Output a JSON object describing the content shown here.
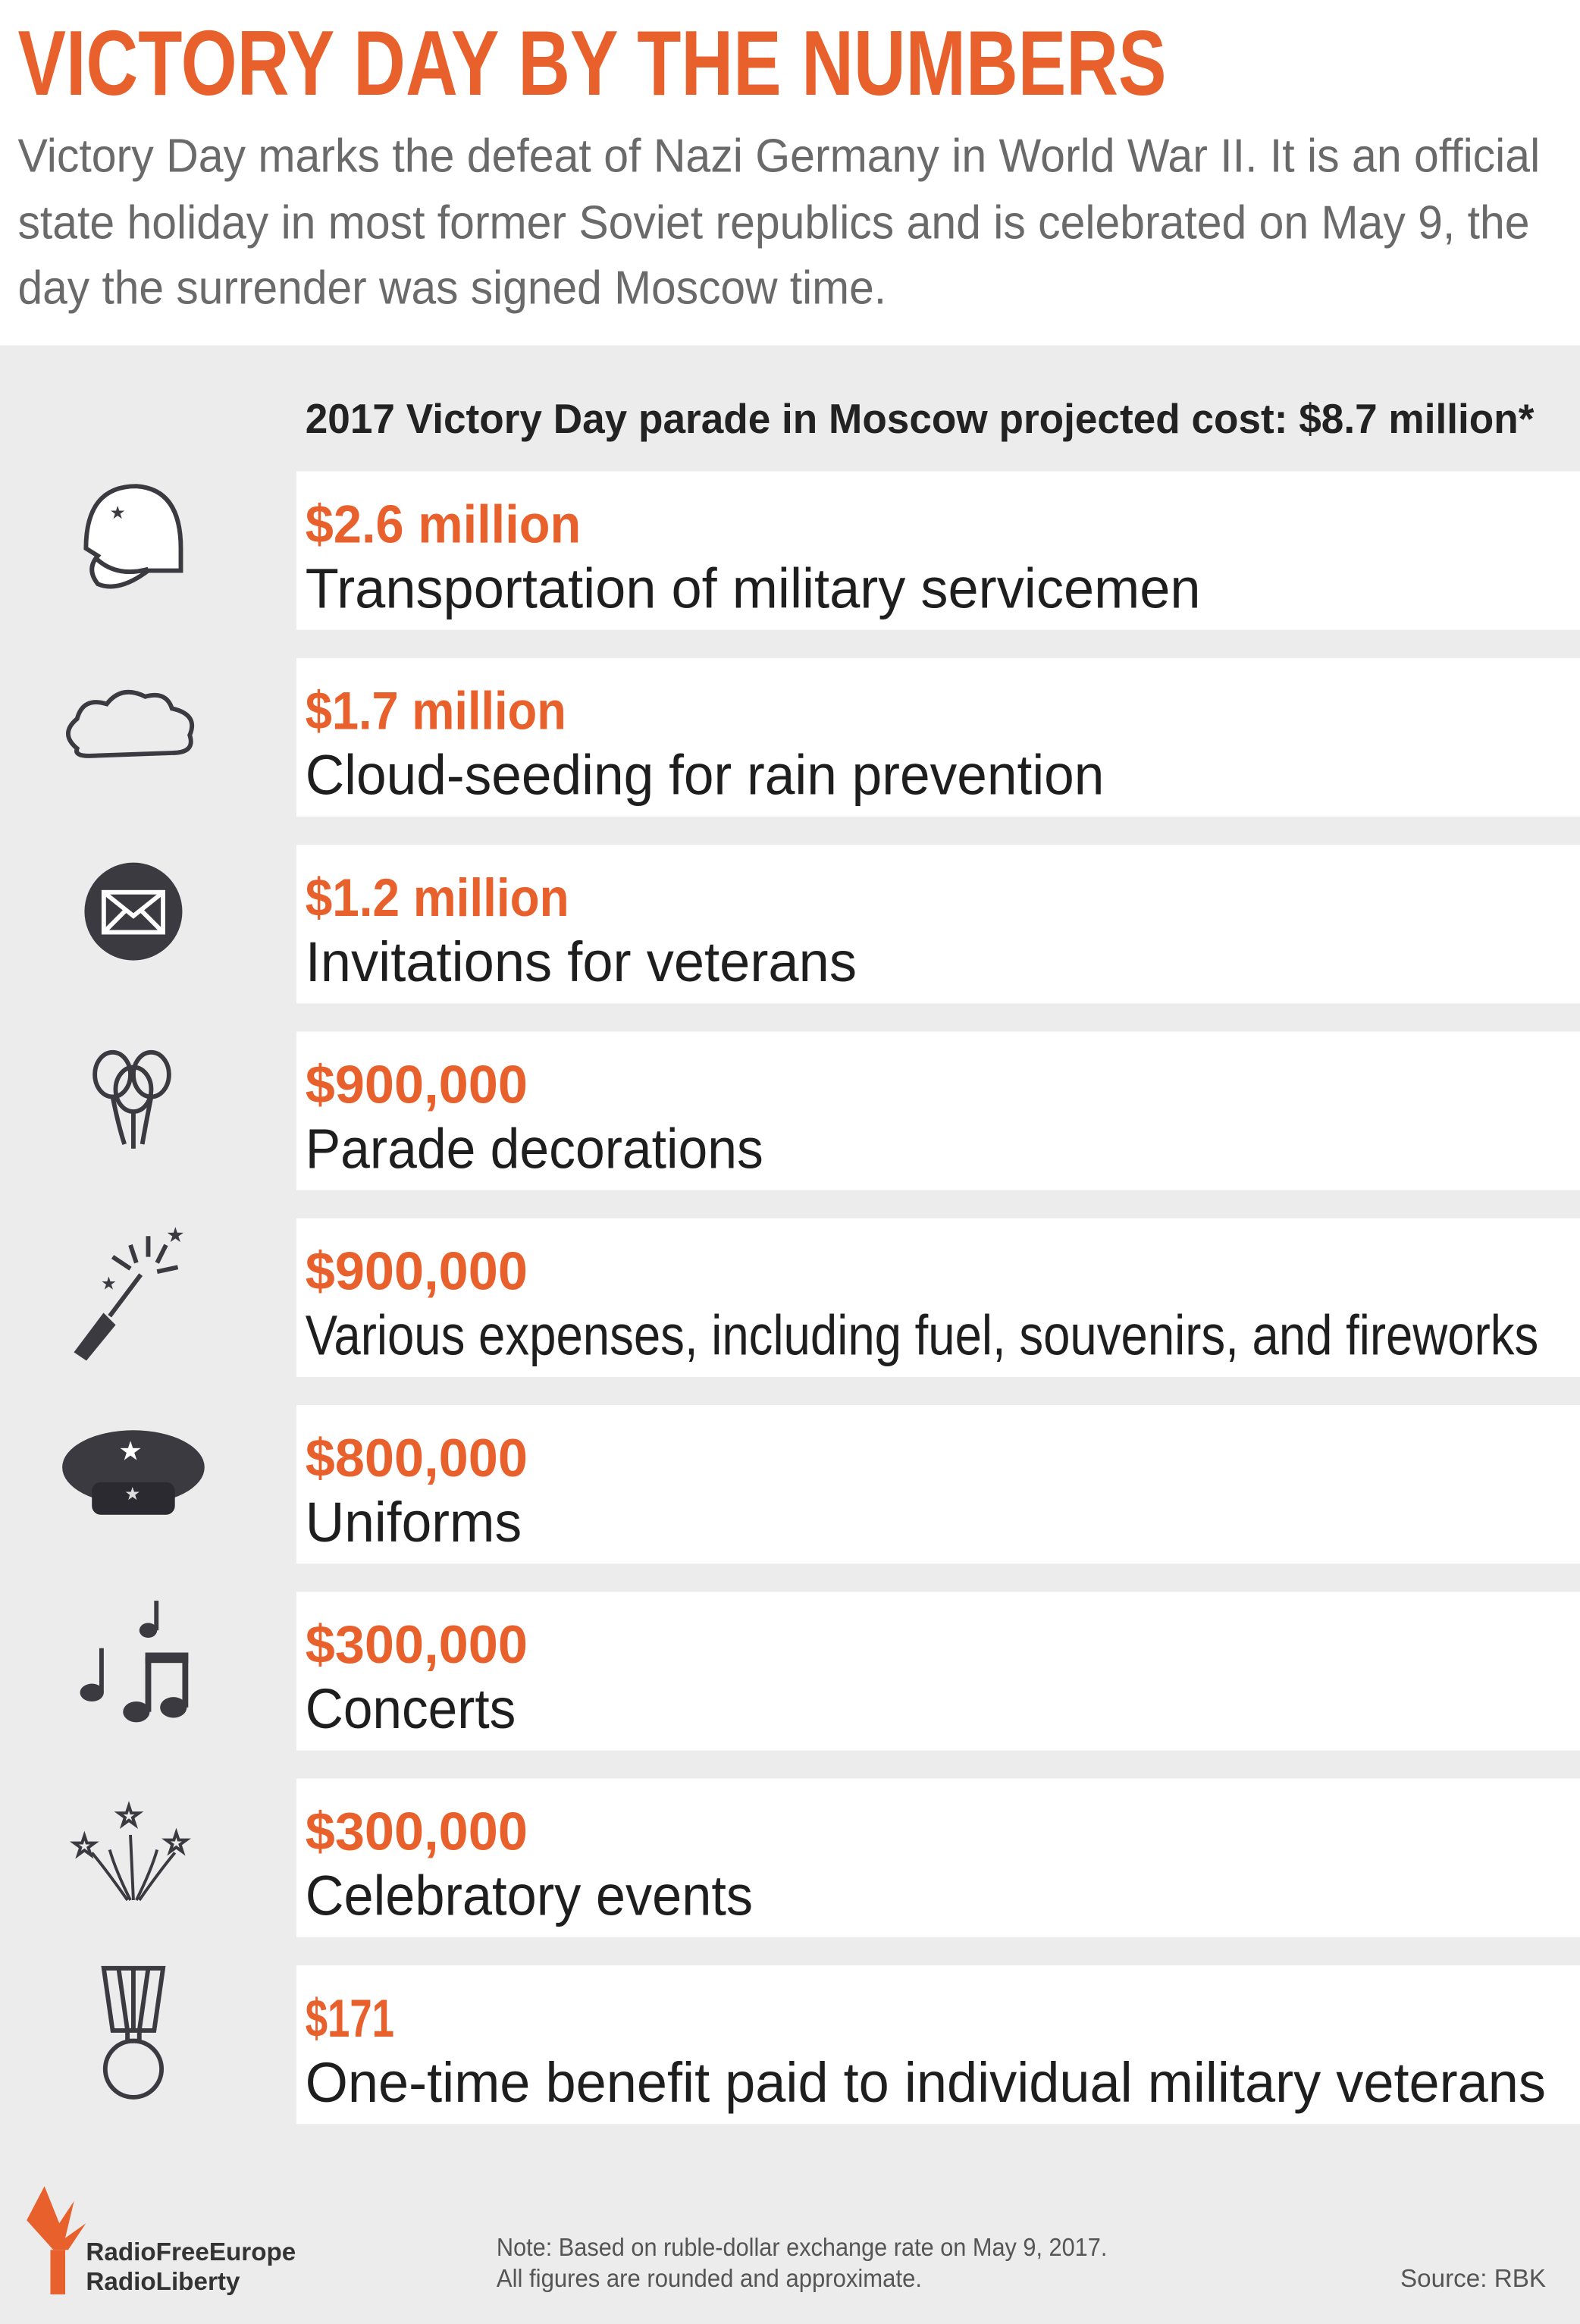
{
  "header": {
    "title": "VICTORY DAY BY THE NUMBERS",
    "intro": [
      "Victory Day marks the defeat of Nazi Germany in World War II. It is an official",
      "state holiday in most former Soviet republics and is celebrated on May 9, the",
      "day the surrender was signed Moscow time."
    ]
  },
  "subheader": "2017 Victory Day parade in Moscow projected cost: $8.7 million*",
  "items": [
    {
      "amount": "$2.6 million",
      "description": "Transportation of military servicemen"
    },
    {
      "amount": "$1.7 million",
      "description": "Cloud-seeding for rain prevention"
    },
    {
      "amount": "$1.2 million",
      "description": "Invitations for veterans"
    },
    {
      "amount": "$900,000",
      "description": "Parade decorations"
    },
    {
      "amount": "$900,000",
      "description": "Various expenses, including fuel, souvenirs, and fireworks"
    },
    {
      "amount": "$800,000",
      "description": "Uniforms"
    },
    {
      "amount": "$300,000",
      "description": "Concerts"
    },
    {
      "amount": "$300,000",
      "description": "Celebratory events"
    },
    {
      "amount": "$171",
      "description": "One-time benefit paid to individual military veterans"
    }
  ],
  "footer": {
    "logo": [
      "RadioFreeEurope",
      "RadioLiberty"
    ],
    "note": [
      "Note: Based on ruble-dollar exchange rate on May 9, 2017.",
      "All figures are rounded and approximate."
    ],
    "source": "Source: RBK"
  }
}
